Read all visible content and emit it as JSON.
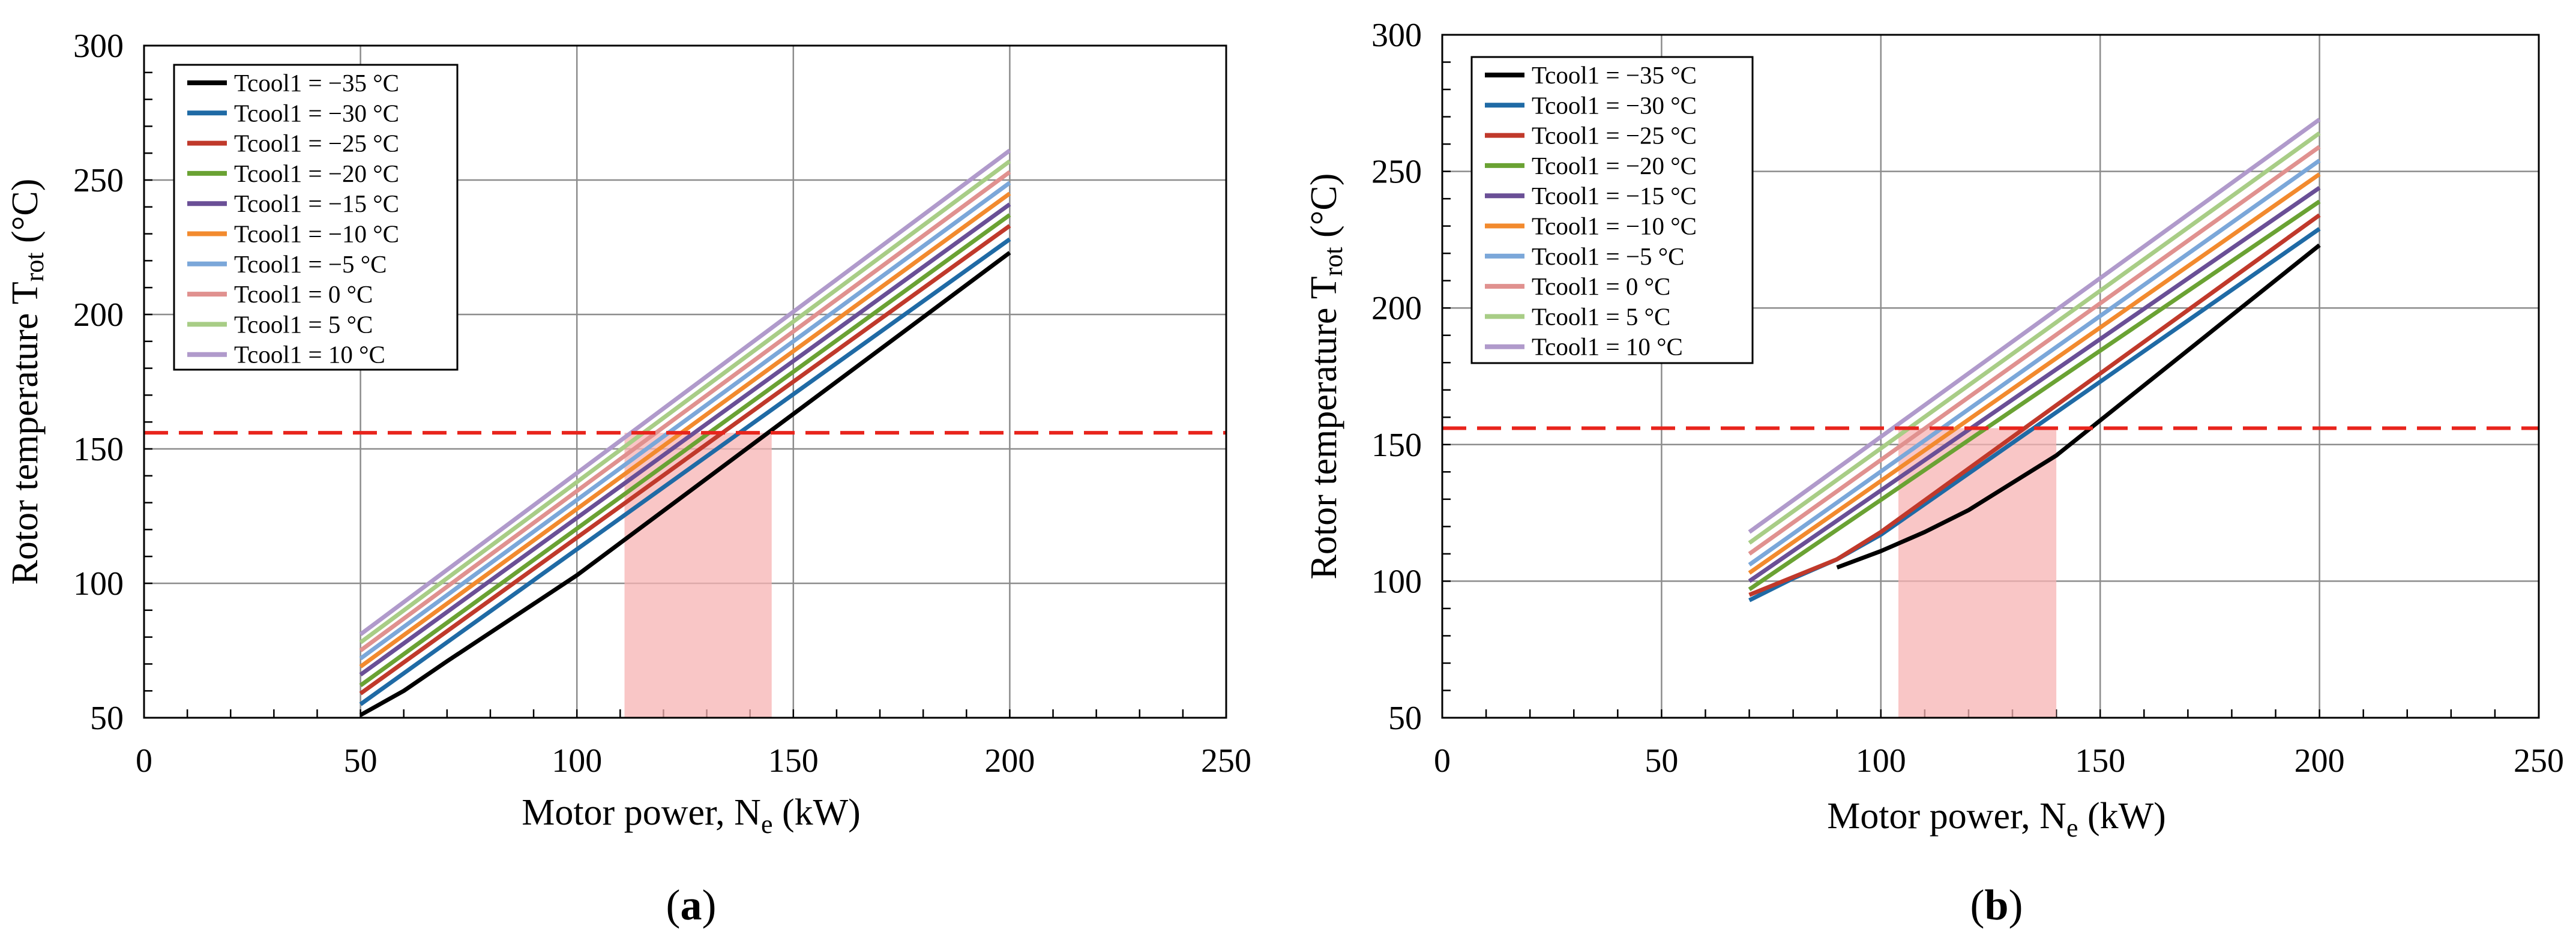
{
  "colors": {
    "tcool_m35": "#000000",
    "tcool_m30": "#1f6aa5",
    "tcool_m25": "#c0392b",
    "tcool_m20": "#6aa233",
    "tcool_m15": "#6a4f96",
    "tcool_m10": "#f28a2e",
    "tcool_m5": "#7ba7d9",
    "tcool_0": "#e0918f",
    "tcool_5": "#a8cd86",
    "tcool_10": "#b09acb",
    "limit_line": "#e8241c",
    "region_fill": "#f7b3b3"
  },
  "chart_data": [
    {
      "panel_label": "(a)",
      "panel_prefix": "(",
      "panel_letter": "a",
      "panel_suffix": ")",
      "type": "line",
      "xlabel_main": "Motor power, N",
      "xlabel_sub": "e",
      "xlabel_end": " (kW)",
      "ylabel_main": "Rotor temperature T",
      "ylabel_sub": "rot",
      "ylabel_end": " (°C)",
      "xlim": [
        0,
        250
      ],
      "ylim": [
        50,
        300
      ],
      "xticks": [
        "0",
        "50",
        "100",
        "150",
        "200",
        "250"
      ],
      "yticks": [
        "50",
        "100",
        "150",
        "200",
        "250",
        "300"
      ],
      "grid": true,
      "legend_position": "top-left",
      "limit_temperature": 156,
      "shaded_region": {
        "x_start": 111,
        "x_end": 145
      },
      "series": [
        {
          "name": "Tcool1 = −35 °C",
          "color_key": "tcool_m35",
          "x": [
            50,
            60,
            70,
            100,
            150,
            200
          ],
          "y": [
            51,
            60,
            71,
            103,
            163,
            223
          ]
        },
        {
          "name": "Tcool1 = −30 °C",
          "color_key": "tcool_m30",
          "x": [
            50,
            200
          ],
          "y": [
            55,
            228
          ]
        },
        {
          "name": "Tcool1 = −25 °C",
          "color_key": "tcool_m25",
          "x": [
            50,
            200
          ],
          "y": [
            59,
            233
          ]
        },
        {
          "name": "Tcool1 = −20 °C",
          "color_key": "tcool_m20",
          "x": [
            50,
            200
          ],
          "y": [
            62,
            237
          ]
        },
        {
          "name": "Tcool1 = −15 °C",
          "color_key": "tcool_m15",
          "x": [
            50,
            200
          ],
          "y": [
            66,
            241
          ]
        },
        {
          "name": "Tcool1 = −10 °C",
          "color_key": "tcool_m10",
          "x": [
            50,
            200
          ],
          "y": [
            69,
            245
          ]
        },
        {
          "name": "Tcool1 = −5 °C",
          "color_key": "tcool_m5",
          "x": [
            50,
            200
          ],
          "y": [
            72,
            249
          ]
        },
        {
          "name": "Tcool1 = 0 °C",
          "color_key": "tcool_0",
          "x": [
            50,
            200
          ],
          "y": [
            75,
            253
          ]
        },
        {
          "name": "Tcool1 = 5 °C",
          "color_key": "tcool_5",
          "x": [
            50,
            200
          ],
          "y": [
            78,
            257
          ]
        },
        {
          "name": "Tcool1 = 10 °C",
          "color_key": "tcool_10",
          "x": [
            50,
            200
          ],
          "y": [
            81,
            261
          ]
        }
      ]
    },
    {
      "panel_label": "(b)",
      "panel_prefix": "(",
      "panel_letter": "b",
      "panel_suffix": ")",
      "type": "line",
      "xlabel_main": "Motor power, N",
      "xlabel_sub": "e",
      "xlabel_end": " (kW)",
      "ylabel_main": "Rotor temperature T",
      "ylabel_sub": "rot",
      "ylabel_end": " (°C)",
      "xlim": [
        0,
        250
      ],
      "ylim": [
        50,
        300
      ],
      "xticks": [
        "0",
        "50",
        "100",
        "150",
        "200",
        "250"
      ],
      "yticks": [
        "50",
        "100",
        "150",
        "200",
        "250",
        "300"
      ],
      "grid": true,
      "legend_position": "top-left",
      "limit_temperature": 156,
      "shaded_region": {
        "x_start": 104,
        "x_end": 140
      },
      "series": [
        {
          "name": "Tcool1 = −35 °C",
          "color_key": "tcool_m35",
          "x": [
            90,
            100,
            110,
            120,
            140,
            200
          ],
          "y": [
            105,
            111,
            118,
            126,
            146,
            223
          ]
        },
        {
          "name": "Tcool1 = −30 °C",
          "color_key": "tcool_m30",
          "x": [
            70,
            80,
            90,
            100,
            200
          ],
          "y": [
            93,
            101,
            108,
            117,
            229
          ]
        },
        {
          "name": "Tcool1 = −25 °C",
          "color_key": "tcool_m25",
          "x": [
            70,
            90,
            100,
            200
          ],
          "y": [
            95,
            108,
            118,
            234
          ]
        },
        {
          "name": "Tcool1 = −20 °C",
          "color_key": "tcool_m20",
          "x": [
            70,
            200
          ],
          "y": [
            97,
            239
          ]
        },
        {
          "name": "Tcool1 = −15 °C",
          "color_key": "tcool_m15",
          "x": [
            70,
            200
          ],
          "y": [
            100,
            244
          ]
        },
        {
          "name": "Tcool1 = −10 °C",
          "color_key": "tcool_m10",
          "x": [
            70,
            200
          ],
          "y": [
            103,
            249
          ]
        },
        {
          "name": "Tcool1 = −5 °C",
          "color_key": "tcool_m5",
          "x": [
            70,
            200
          ],
          "y": [
            106,
            254
          ]
        },
        {
          "name": "Tcool1 = 0 °C",
          "color_key": "tcool_0",
          "x": [
            70,
            200
          ],
          "y": [
            110,
            259
          ]
        },
        {
          "name": "Tcool1 = 5 °C",
          "color_key": "tcool_5",
          "x": [
            70,
            200
          ],
          "y": [
            114,
            264
          ]
        },
        {
          "name": "Tcool1 = 10 °C",
          "color_key": "tcool_10",
          "x": [
            70,
            200
          ],
          "y": [
            118,
            269
          ]
        }
      ]
    }
  ]
}
